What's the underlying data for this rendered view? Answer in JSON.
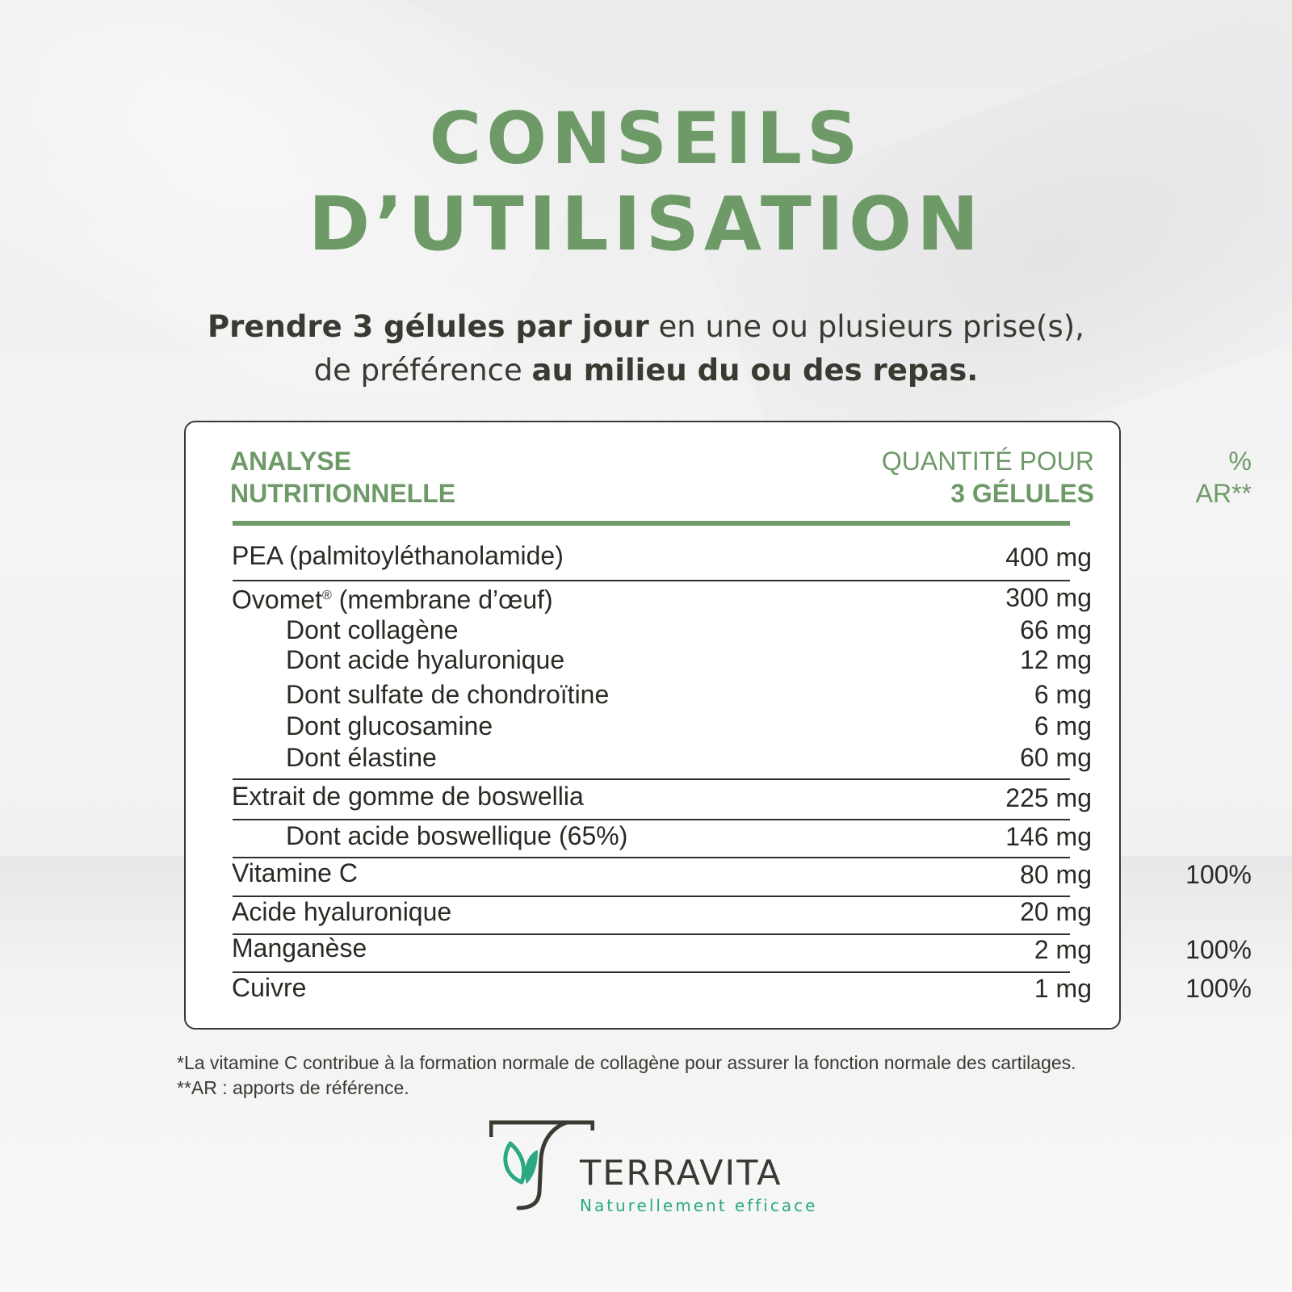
{
  "title": {
    "line1": "CONSEILS",
    "line2": "D’UTILISATION"
  },
  "intro": {
    "line1_bold": "Prendre 3 gélules par jour",
    "line1_rest": " en une ou plusieurs prise(s),",
    "line2_start": "de préférence ",
    "line2_bold": "au milieu du ou des repas."
  },
  "table": {
    "headers": {
      "col1_line1": "ANALYSE",
      "col1_line2": "NUTRITIONNELLE",
      "col2_line1": "QUANTITÉ POUR",
      "col2_line2": "3 GÉLULES",
      "col3_line1": "%",
      "col3_line2": "AR**"
    },
    "rows": [
      {
        "name": "PEA (palmitoyléthanolamide)",
        "qty": "400 mg",
        "pct": ""
      },
      {
        "name": "Ovomet",
        "name_sup": "®",
        "name_rest": " (membrane d’œuf)",
        "qty": "300 mg",
        "pct": ""
      },
      {
        "name": "Dont collagène",
        "qty": "66 mg",
        "pct": ""
      },
      {
        "name": "Dont acide hyaluronique",
        "qty": "12 mg",
        "pct": ""
      },
      {
        "name": "Dont sulfate de chondroïtine",
        "qty": "6 mg",
        "pct": ""
      },
      {
        "name": "Dont glucosamine",
        "qty": "6 mg",
        "pct": ""
      },
      {
        "name": "Dont élastine",
        "qty": "60 mg",
        "pct": ""
      },
      {
        "name": "Extrait de gomme de boswellia",
        "qty": "225 mg",
        "pct": ""
      },
      {
        "name": "Dont acide boswellique (65%)",
        "qty": "146 mg",
        "pct": ""
      },
      {
        "name": "Vitamine C",
        "qty": "80 mg",
        "pct": "100%"
      },
      {
        "name": "Acide hyaluronique",
        "qty": "20 mg",
        "pct": ""
      },
      {
        "name": "Manganèse",
        "qty": "2 mg",
        "pct": "100%"
      },
      {
        "name": "Cuivre",
        "qty": "1 mg",
        "pct": "100%"
      }
    ]
  },
  "footnotes": {
    "note1": "*La vitamine C contribue à la formation normale de collagène pour assurer la fonction normale des cartilages.",
    "note2": "**AR : apports de référence."
  },
  "logo": {
    "brand": "TERRAVITA",
    "tagline": "Naturellement efficace"
  },
  "colors": {
    "accent_green": "#6e9a68",
    "dark_text": "#3a3a33",
    "teal": "#2aa882"
  },
  "icons": {
    "logo_mark": "t-leaf-logo-icon"
  }
}
